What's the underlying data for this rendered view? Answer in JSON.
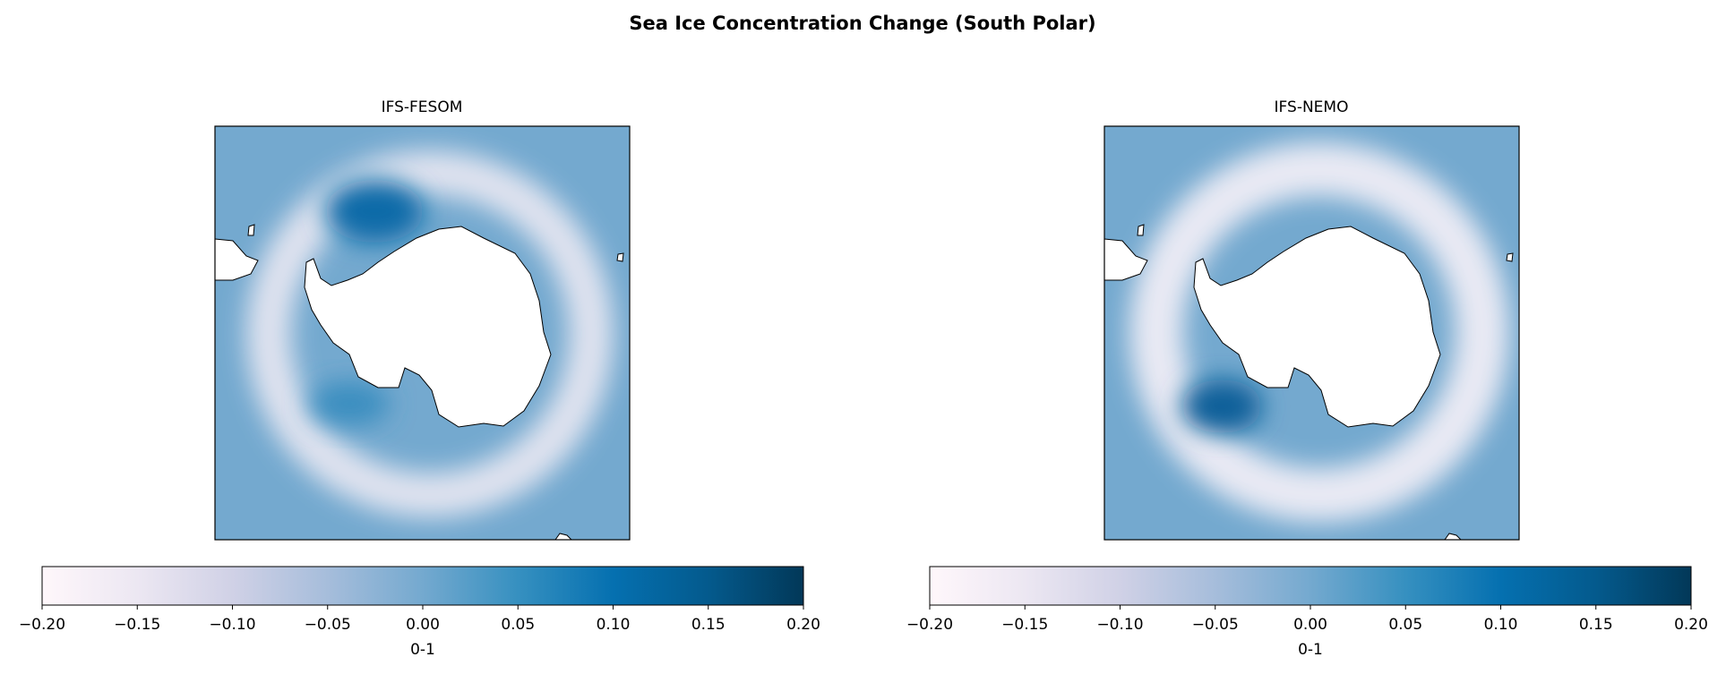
{
  "title": "Sea Ice Concentration Change (South Polar)",
  "chart_data": [
    {
      "type": "map",
      "title": "IFS-FESOM",
      "colormap": [
        "#fff7fb",
        "#ece7f2",
        "#d0d1e6",
        "#a6bddb",
        "#74a9cf",
        "#3690c0",
        "#0570b0",
        "#045a8d",
        "#023858"
      ],
      "colorbar": {
        "label": "0-1",
        "lim": [
          -0.2,
          0.2
        ],
        "ticks": [
          {
            "value": -0.2,
            "label": "−0.20"
          },
          {
            "value": -0.15,
            "label": "−0.15"
          },
          {
            "value": -0.1,
            "label": "−0.10"
          },
          {
            "value": -0.05,
            "label": "−0.05"
          },
          {
            "value": 0,
            "label": "0.00"
          },
          {
            "value": 0.05,
            "label": "0.05"
          },
          {
            "value": 0.1,
            "label": "0.10"
          },
          {
            "value": 0.15,
            "label": "0.15"
          },
          {
            "value": 0.2,
            "label": "0.20"
          }
        ]
      }
    },
    {
      "type": "map",
      "title": "IFS-NEMO",
      "colormap": [
        "#fff7fb",
        "#ece7f2",
        "#d0d1e6",
        "#a6bddb",
        "#74a9cf",
        "#3690c0",
        "#0570b0",
        "#045a8d",
        "#023858"
      ],
      "colorbar": {
        "label": "0-1",
        "lim": [
          -0.2,
          0.2
        ],
        "ticks": [
          {
            "value": -0.2,
            "label": "−0.20"
          },
          {
            "value": -0.15,
            "label": "−0.15"
          },
          {
            "value": -0.1,
            "label": "−0.10"
          },
          {
            "value": -0.05,
            "label": "−0.05"
          },
          {
            "value": 0,
            "label": "0.00"
          },
          {
            "value": 0.05,
            "label": "0.05"
          },
          {
            "value": 0.1,
            "label": "0.10"
          },
          {
            "value": 0.15,
            "label": "0.15"
          },
          {
            "value": 0.2,
            "label": "0.20"
          }
        ]
      }
    }
  ]
}
